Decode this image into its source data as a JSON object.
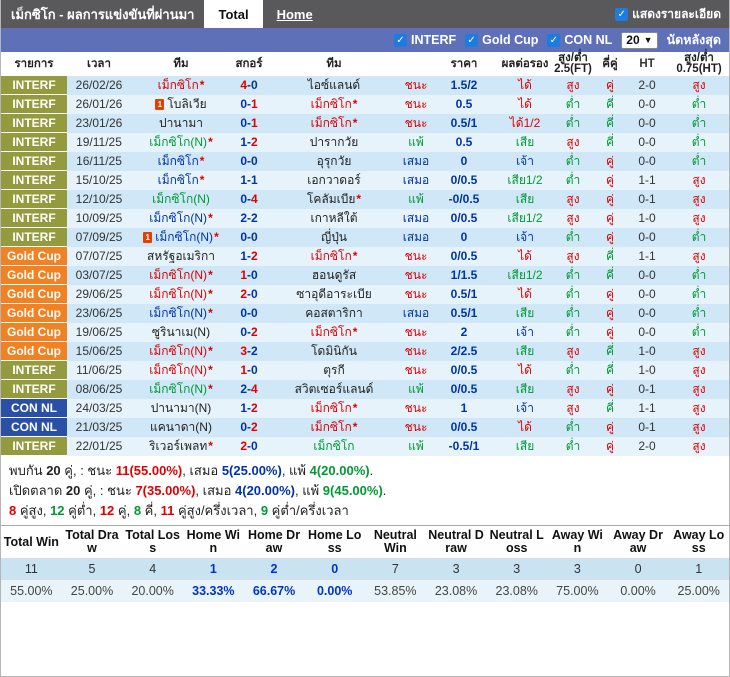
{
  "header": {
    "title": "เม็กซิโก - ผลการแข่งขันที่ผ่านมา",
    "tabs": [
      {
        "label": "Total",
        "active": true
      },
      {
        "label": "Home",
        "active": false
      }
    ],
    "detail_checkbox_label": "แสดงรายละเอียด"
  },
  "filter_bar": {
    "leagues": [
      "INTERF",
      "Gold Cup",
      "CON NL"
    ],
    "match_count_value": "20",
    "match_count_suffix": "นัดหลังสุด"
  },
  "colors": {
    "win_red": "#e00000",
    "draw_navy": "#0033aa",
    "loss_green": "#009933",
    "interf_badge": "#949b3f",
    "goldcup_badge": "#f08224",
    "connl_badge": "#2a50a5",
    "topbar": "#59595b",
    "filterbar": "#5e71b8",
    "home_stat_highlight": "#0033cc"
  },
  "table": {
    "columns": {
      "list": "รายการ",
      "time": "เวลา",
      "team1": "ทีม",
      "score": "สกอร์",
      "team2": "ทีม",
      "res": "",
      "price": "ราคา",
      "handicap": "ผลต่อรอง",
      "ou_ft": "สูง/ต่ำ 2.5(FT)",
      "odd_even": "คี่คู่",
      "ht": "HT",
      "ou_ht": "สูง/ต่ำ 0.75(HT)"
    },
    "rows": [
      {
        "lg": "INTERF",
        "lgc": "interf",
        "date": "26/02/26",
        "h": "เม็กซิโก",
        "hstar": true,
        "hcard": false,
        "hcol": "red",
        "s1": "4",
        "s1c": "red",
        "s2": "0",
        "s2c": "navy",
        "a": "ไอซ์แลนด์",
        "astar": false,
        "acard": false,
        "acol": "blk",
        "res": "ชนะ",
        "resc": "red",
        "ratio": "1.5/2",
        "hdp": "ได้",
        "hdpc": "red",
        "ou": "สูง",
        "ouc": "red",
        "oe": "คู่",
        "oec": "red",
        "ht": "2-0",
        "hou": "สูง",
        "houc": "red"
      },
      {
        "lg": "INTERF",
        "lgc": "interf",
        "date": "26/01/26",
        "h": "โบลิเวีย",
        "hstar": false,
        "hcard": true,
        "hcol": "blk",
        "s1": "0",
        "s1c": "navy",
        "s2": "1",
        "s2c": "red",
        "a": "เม็กซิโก",
        "astar": true,
        "acard": false,
        "acol": "red",
        "res": "ชนะ",
        "resc": "red",
        "ratio": "0.5",
        "hdp": "ได้",
        "hdpc": "red",
        "ou": "ต่ำ",
        "ouc": "green",
        "oe": "คี่",
        "oec": "green",
        "ht": "0-0",
        "hou": "ต่ำ",
        "houc": "green"
      },
      {
        "lg": "INTERF",
        "lgc": "interf",
        "date": "23/01/26",
        "h": "ปานามา",
        "hstar": false,
        "hcard": false,
        "hcol": "blk",
        "s1": "0",
        "s1c": "navy",
        "s2": "1",
        "s2c": "red",
        "a": "เม็กซิโก",
        "astar": true,
        "acard": false,
        "acol": "red",
        "res": "ชนะ",
        "resc": "red",
        "ratio": "0.5/1",
        "hdp": "ได้1/2",
        "hdpc": "red",
        "ou": "ต่ำ",
        "ouc": "green",
        "oe": "คี่",
        "oec": "green",
        "ht": "0-0",
        "hou": "ต่ำ",
        "houc": "green"
      },
      {
        "lg": "INTERF",
        "lgc": "interf",
        "date": "19/11/25",
        "h": "เม็กซิโก(N)",
        "hstar": true,
        "hcard": false,
        "hcol": "green",
        "s1": "1",
        "s1c": "navy",
        "s2": "2",
        "s2c": "red",
        "a": "ปารากวัย",
        "astar": false,
        "acard": false,
        "acol": "blk",
        "res": "แพ้",
        "resc": "green",
        "ratio": "0.5",
        "hdp": "เสีย",
        "hdpc": "green",
        "ou": "สูง",
        "ouc": "red",
        "oe": "คี่",
        "oec": "green",
        "ht": "0-0",
        "hou": "ต่ำ",
        "houc": "green"
      },
      {
        "lg": "INTERF",
        "lgc": "interf",
        "date": "16/11/25",
        "h": "เม็กซิโก",
        "hstar": true,
        "hcard": false,
        "hcol": "navy",
        "s1": "0",
        "s1c": "navy",
        "s2": "0",
        "s2c": "navy",
        "a": "อุรุกวัย",
        "astar": false,
        "acard": false,
        "acol": "blk",
        "res": "เสมอ",
        "resc": "navy",
        "ratio": "0",
        "hdp": "เจ้า",
        "hdpc": "navy",
        "ou": "ต่ำ",
        "ouc": "green",
        "oe": "คู่",
        "oec": "red",
        "ht": "0-0",
        "hou": "ต่ำ",
        "houc": "green"
      },
      {
        "lg": "INTERF",
        "lgc": "interf",
        "date": "15/10/25",
        "h": "เม็กซิโก",
        "hstar": true,
        "hcard": false,
        "hcol": "navy",
        "s1": "1",
        "s1c": "navy",
        "s2": "1",
        "s2c": "navy",
        "a": "เอกวาดอร์",
        "astar": false,
        "acard": false,
        "acol": "blk",
        "res": "เสมอ",
        "resc": "navy",
        "ratio": "0/0.5",
        "hdp": "เสีย1/2",
        "hdpc": "green",
        "ou": "ต่ำ",
        "ouc": "green",
        "oe": "คู่",
        "oec": "red",
        "ht": "1-1",
        "hou": "สูง",
        "houc": "red"
      },
      {
        "lg": "INTERF",
        "lgc": "interf",
        "date": "12/10/25",
        "h": "เม็กซิโก(N)",
        "hstar": false,
        "hcard": false,
        "hcol": "green",
        "s1": "0",
        "s1c": "navy",
        "s2": "4",
        "s2c": "red",
        "a": "โคลัมเบีย",
        "astar": true,
        "acard": false,
        "acol": "blk",
        "res": "แพ้",
        "resc": "green",
        "ratio": "-0/0.5",
        "hdp": "เสีย",
        "hdpc": "green",
        "ou": "สูง",
        "ouc": "red",
        "oe": "คู่",
        "oec": "red",
        "ht": "0-1",
        "hou": "สูง",
        "houc": "red"
      },
      {
        "lg": "INTERF",
        "lgc": "interf",
        "date": "10/09/25",
        "h": "เม็กซิโก(N)",
        "hstar": true,
        "hcard": false,
        "hcol": "navy",
        "s1": "2",
        "s1c": "navy",
        "s2": "2",
        "s2c": "navy",
        "a": "เกาหลีใต้",
        "astar": false,
        "acard": false,
        "acol": "blk",
        "res": "เสมอ",
        "resc": "navy",
        "ratio": "0/0.5",
        "hdp": "เสีย1/2",
        "hdpc": "green",
        "ou": "สูง",
        "ouc": "red",
        "oe": "คู่",
        "oec": "red",
        "ht": "1-0",
        "hou": "สูง",
        "houc": "red"
      },
      {
        "lg": "INTERF",
        "lgc": "interf",
        "date": "07/09/25",
        "h": "เม็กซิโก(N)",
        "hstar": true,
        "hcard": true,
        "hcol": "navy",
        "s1": "0",
        "s1c": "navy",
        "s2": "0",
        "s2c": "navy",
        "a": "ญี่ปุ่น",
        "astar": false,
        "acard": false,
        "acol": "blk",
        "res": "เสมอ",
        "resc": "navy",
        "ratio": "0",
        "hdp": "เจ้า",
        "hdpc": "navy",
        "ou": "ต่ำ",
        "ouc": "green",
        "oe": "คู่",
        "oec": "red",
        "ht": "0-0",
        "hou": "ต่ำ",
        "houc": "green"
      },
      {
        "lg": "Gold Cup",
        "lgc": "goldcup",
        "date": "07/07/25",
        "h": "สหรัฐอเมริกา",
        "hstar": false,
        "hcard": false,
        "hcol": "blk",
        "s1": "1",
        "s1c": "navy",
        "s2": "2",
        "s2c": "red",
        "a": "เม็กซิโก",
        "astar": true,
        "acard": false,
        "acol": "red",
        "res": "ชนะ",
        "resc": "red",
        "ratio": "0/0.5",
        "hdp": "ได้",
        "hdpc": "red",
        "ou": "สูง",
        "ouc": "red",
        "oe": "คี่",
        "oec": "green",
        "ht": "1-1",
        "hou": "สูง",
        "houc": "red"
      },
      {
        "lg": "Gold Cup",
        "lgc": "goldcup",
        "date": "03/07/25",
        "h": "เม็กซิโก(N)",
        "hstar": true,
        "hcard": false,
        "hcol": "red",
        "s1": "1",
        "s1c": "red",
        "s2": "0",
        "s2c": "navy",
        "a": "ฮอนดูรัส",
        "astar": false,
        "acard": false,
        "acol": "blk",
        "res": "ชนะ",
        "resc": "red",
        "ratio": "1/1.5",
        "hdp": "เสีย1/2",
        "hdpc": "green",
        "ou": "ต่ำ",
        "ouc": "green",
        "oe": "คี่",
        "oec": "green",
        "ht": "0-0",
        "hou": "ต่ำ",
        "houc": "green"
      },
      {
        "lg": "Gold Cup",
        "lgc": "goldcup",
        "date": "29/06/25",
        "h": "เม็กซิโก(N)",
        "hstar": true,
        "hcard": false,
        "hcol": "red",
        "s1": "2",
        "s1c": "red",
        "s2": "0",
        "s2c": "navy",
        "a": "ซาอุดีอาระเบีย",
        "astar": false,
        "acard": false,
        "acol": "blk",
        "res": "ชนะ",
        "resc": "red",
        "ratio": "0.5/1",
        "hdp": "ได้",
        "hdpc": "red",
        "ou": "ต่ำ",
        "ouc": "green",
        "oe": "คู่",
        "oec": "red",
        "ht": "0-0",
        "hou": "ต่ำ",
        "houc": "green"
      },
      {
        "lg": "Gold Cup",
        "lgc": "goldcup",
        "date": "23/06/25",
        "h": "เม็กซิโก(N)",
        "hstar": true,
        "hcard": false,
        "hcol": "navy",
        "s1": "0",
        "s1c": "navy",
        "s2": "0",
        "s2c": "navy",
        "a": "คอสตาริกา",
        "astar": false,
        "acard": false,
        "acol": "blk",
        "res": "เสมอ",
        "resc": "navy",
        "ratio": "0.5/1",
        "hdp": "เสีย",
        "hdpc": "green",
        "ou": "ต่ำ",
        "ouc": "green",
        "oe": "คู่",
        "oec": "red",
        "ht": "0-0",
        "hou": "ต่ำ",
        "houc": "green"
      },
      {
        "lg": "Gold Cup",
        "lgc": "goldcup",
        "date": "19/06/25",
        "h": "ซูรินาเม(N)",
        "hstar": false,
        "hcard": false,
        "hcol": "blk",
        "s1": "0",
        "s1c": "navy",
        "s2": "2",
        "s2c": "red",
        "a": "เม็กซิโก",
        "astar": true,
        "acard": false,
        "acol": "red",
        "res": "ชนะ",
        "resc": "red",
        "ratio": "2",
        "hdp": "เจ้า",
        "hdpc": "navy",
        "ou": "ต่ำ",
        "ouc": "green",
        "oe": "คู่",
        "oec": "red",
        "ht": "0-0",
        "hou": "ต่ำ",
        "houc": "green"
      },
      {
        "lg": "Gold Cup",
        "lgc": "goldcup",
        "date": "15/06/25",
        "h": "เม็กซิโก(N)",
        "hstar": true,
        "hcard": false,
        "hcol": "red",
        "s1": "3",
        "s1c": "red",
        "s2": "2",
        "s2c": "navy",
        "a": "โดมินิกัน",
        "astar": false,
        "acard": false,
        "acol": "blk",
        "res": "ชนะ",
        "resc": "red",
        "ratio": "2/2.5",
        "hdp": "เสีย",
        "hdpc": "green",
        "ou": "สูง",
        "ouc": "red",
        "oe": "คี่",
        "oec": "green",
        "ht": "1-0",
        "hou": "สูง",
        "houc": "red"
      },
      {
        "lg": "INTERF",
        "lgc": "interf",
        "date": "11/06/25",
        "h": "เม็กซิโก(N)",
        "hstar": true,
        "hcard": false,
        "hcol": "red",
        "s1": "1",
        "s1c": "red",
        "s2": "0",
        "s2c": "navy",
        "a": "ตุรกี",
        "astar": false,
        "acard": false,
        "acol": "blk",
        "res": "ชนะ",
        "resc": "red",
        "ratio": "0/0.5",
        "hdp": "ได้",
        "hdpc": "red",
        "ou": "ต่ำ",
        "ouc": "green",
        "oe": "คี่",
        "oec": "green",
        "ht": "1-0",
        "hou": "สูง",
        "houc": "red"
      },
      {
        "lg": "INTERF",
        "lgc": "interf",
        "date": "08/06/25",
        "h": "เม็กซิโก(N)",
        "hstar": true,
        "hcard": false,
        "hcol": "green",
        "s1": "2",
        "s1c": "navy",
        "s2": "4",
        "s2c": "red",
        "a": "สวิตเซอร์แลนด์",
        "astar": false,
        "acard": false,
        "acol": "blk",
        "res": "แพ้",
        "resc": "green",
        "ratio": "0/0.5",
        "hdp": "เสีย",
        "hdpc": "green",
        "ou": "สูง",
        "ouc": "red",
        "oe": "คู่",
        "oec": "red",
        "ht": "0-1",
        "hou": "สูง",
        "houc": "red"
      },
      {
        "lg": "CON NL",
        "lgc": "connl",
        "date": "24/03/25",
        "h": "ปานามา(N)",
        "hstar": false,
        "hcard": false,
        "hcol": "blk",
        "s1": "1",
        "s1c": "navy",
        "s2": "2",
        "s2c": "red",
        "a": "เม็กซิโก",
        "astar": true,
        "acard": false,
        "acol": "red",
        "res": "ชนะ",
        "resc": "red",
        "ratio": "1",
        "hdp": "เจ้า",
        "hdpc": "navy",
        "ou": "สูง",
        "ouc": "red",
        "oe": "คี่",
        "oec": "green",
        "ht": "1-1",
        "hou": "สูง",
        "houc": "red"
      },
      {
        "lg": "CON NL",
        "lgc": "connl",
        "date": "21/03/25",
        "h": "แคนาดา(N)",
        "hstar": false,
        "hcard": false,
        "hcol": "blk",
        "s1": "0",
        "s1c": "navy",
        "s2": "2",
        "s2c": "red",
        "a": "เม็กซิโก",
        "astar": true,
        "acard": false,
        "acol": "red",
        "res": "ชนะ",
        "resc": "red",
        "ratio": "0/0.5",
        "hdp": "ได้",
        "hdpc": "red",
        "ou": "ต่ำ",
        "ouc": "green",
        "oe": "คู่",
        "oec": "red",
        "ht": "0-1",
        "hou": "สูง",
        "houc": "red"
      },
      {
        "lg": "INTERF",
        "lgc": "interf",
        "date": "22/01/25",
        "h": "ริเวอร์เพลท",
        "hstar": true,
        "hcard": false,
        "hcol": "blk",
        "s1": "2",
        "s1c": "red",
        "s2": "0",
        "s2c": "navy",
        "a": "เม็กซิโก",
        "astar": false,
        "acard": false,
        "acol": "green",
        "res": "แพ้",
        "resc": "green",
        "ratio": "-0.5/1",
        "hdp": "เสีย",
        "hdpc": "green",
        "ou": "ต่ำ",
        "ouc": "green",
        "oe": "คู่",
        "oec": "red",
        "ht": "2-0",
        "hou": "สูง",
        "houc": "red"
      }
    ]
  },
  "summary": {
    "lines": [
      [
        {
          "t": "พบกัน ",
          "c": "blk"
        },
        {
          "t": "20",
          "c": "blk",
          "b": true
        },
        {
          "t": " คู่, : ชนะ ",
          "c": "blk"
        },
        {
          "t": "11(55.00%)",
          "c": "red",
          "b": true
        },
        {
          "t": ", เสมอ ",
          "c": "blk"
        },
        {
          "t": "5(25.00%)",
          "c": "navy",
          "b": true
        },
        {
          "t": ", แพ้ ",
          "c": "blk"
        },
        {
          "t": "4(20.00%)",
          "c": "green",
          "b": true
        },
        {
          "t": ".",
          "c": "blk"
        }
      ],
      [
        {
          "t": "เปิดตลาด ",
          "c": "blk"
        },
        {
          "t": "20",
          "c": "blk",
          "b": true
        },
        {
          "t": " คู่, : ชนะ ",
          "c": "blk"
        },
        {
          "t": "7(35.00%)",
          "c": "red",
          "b": true
        },
        {
          "t": ", เสมอ ",
          "c": "blk"
        },
        {
          "t": "4(20.00%)",
          "c": "navy",
          "b": true
        },
        {
          "t": ", แพ้ ",
          "c": "blk"
        },
        {
          "t": "9(45.00%)",
          "c": "green",
          "b": true
        },
        {
          "t": ".",
          "c": "blk"
        }
      ],
      [
        {
          "t": "8",
          "c": "red",
          "b": true
        },
        {
          "t": " คู่สูง, ",
          "c": "blk"
        },
        {
          "t": "12",
          "c": "green",
          "b": true
        },
        {
          "t": " คู่ต่ำ, ",
          "c": "blk"
        },
        {
          "t": "12",
          "c": "red",
          "b": true
        },
        {
          "t": " คู่, ",
          "c": "blk"
        },
        {
          "t": "8",
          "c": "green",
          "b": true
        },
        {
          "t": " คี่, ",
          "c": "blk"
        },
        {
          "t": "11",
          "c": "red",
          "b": true
        },
        {
          "t": " คู่สูง/ครึ่งเวลา, ",
          "c": "blk"
        },
        {
          "t": "9",
          "c": "green",
          "b": true
        },
        {
          "t": " คู่ต่ำ/ครึ่งเวลา",
          "c": "blk"
        }
      ]
    ]
  },
  "stats": {
    "columns": [
      {
        "label": "Total Win",
        "count": "11",
        "pct": "55.00%",
        "hl": false
      },
      {
        "label": "Total Draw",
        "count": "5",
        "pct": "25.00%",
        "hl": false
      },
      {
        "label": "Total Loss",
        "count": "4",
        "pct": "20.00%",
        "hl": false
      },
      {
        "label": "Home Win",
        "count": "1",
        "pct": "33.33%",
        "hl": true
      },
      {
        "label": "Home Draw",
        "count": "2",
        "pct": "66.67%",
        "hl": true
      },
      {
        "label": "Home Loss",
        "count": "0",
        "pct": "0.00%",
        "hl": true
      },
      {
        "label": "Neutral Win",
        "count": "7",
        "pct": "53.85%",
        "hl": false
      },
      {
        "label": "Neutral Draw",
        "count": "3",
        "pct": "23.08%",
        "hl": false
      },
      {
        "label": "Neutral Loss",
        "count": "3",
        "pct": "23.08%",
        "hl": false
      },
      {
        "label": "Away Win",
        "count": "3",
        "pct": "75.00%",
        "hl": false
      },
      {
        "label": "Away Draw",
        "count": "0",
        "pct": "0.00%",
        "hl": false
      },
      {
        "label": "Away Loss",
        "count": "1",
        "pct": "25.00%",
        "hl": false
      }
    ]
  }
}
